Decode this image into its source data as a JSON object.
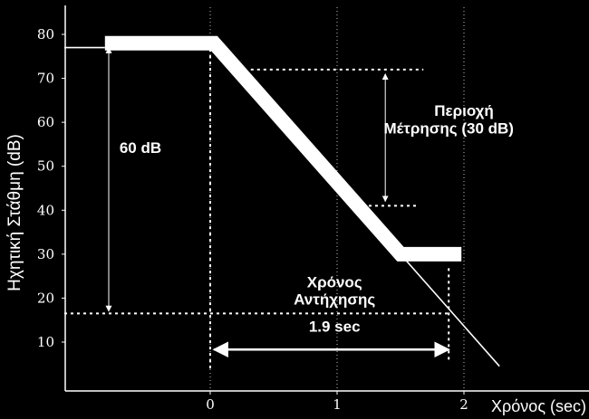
{
  "colors": {
    "background": "#000000",
    "foreground": "#ffffff"
  },
  "chart_data": {
    "type": "line",
    "title": "",
    "xlabel": "Χρόνος (sec)",
    "ylabel": "Ηχητική Στάθμη (dB)",
    "xlim": [
      -1.15,
      2.3
    ],
    "ylim": [
      4,
      84
    ],
    "grid": "vertical dotted at x ticks",
    "xticks": [
      {
        "value": 0,
        "label": "0"
      },
      {
        "value": 1,
        "label": "1"
      },
      {
        "value": 2,
        "label": "2"
      }
    ],
    "yticks": [
      {
        "value": 80,
        "label": "80"
      },
      {
        "value": 70,
        "label": "70"
      },
      {
        "value": 60,
        "label": "60"
      },
      {
        "value": 50,
        "label": "50"
      },
      {
        "value": 40,
        "label": "40"
      },
      {
        "value": 30,
        "label": "30"
      },
      {
        "value": 20,
        "label": "20"
      },
      {
        "value": 10,
        "label": "10"
      }
    ],
    "series": [
      {
        "style": "thick band",
        "x": [
          -0.83,
          0.03,
          1.5,
          1.98
        ],
        "y": [
          78,
          78,
          30,
          30
        ]
      },
      {
        "style": "thin line",
        "x": [
          -1.15,
          -0.83
        ],
        "y": [
          77,
          77
        ]
      },
      {
        "style": "thin line",
        "x": [
          1.5,
          2.28
        ],
        "y": [
          30,
          4.5
        ]
      }
    ],
    "reference_lines": [
      {
        "orientation": "horizontal",
        "y": 72,
        "x": [
          0.32,
          1.68
        ],
        "style": "dotted"
      },
      {
        "orientation": "horizontal",
        "y": 41,
        "x": [
          1.25,
          1.64
        ],
        "style": "dotted"
      },
      {
        "orientation": "horizontal",
        "y": 16.5,
        "x": [
          -1.15,
          1.88
        ],
        "style": "dotted"
      },
      {
        "orientation": "vertical",
        "x": 0,
        "y": [
          4,
          78
        ],
        "style": "dotted"
      },
      {
        "orientation": "vertical",
        "x": 1.88,
        "y": [
          6,
          27
        ],
        "style": "dotted"
      }
    ],
    "annotations": [
      {
        "text": "60 dB",
        "x": -0.55,
        "y": 53
      },
      {
        "text": "Περιοχή",
        "x": 2.0,
        "y": 61.5
      },
      {
        "text": "Μέτρησης (30 dB)",
        "x": 1.88,
        "y": 57.5
      },
      {
        "text": "Χρόνος",
        "x": 0.98,
        "y": 22.5
      },
      {
        "text": "Αντήχησης",
        "x": 0.98,
        "y": 18.5
      },
      {
        "text": "1.9 sec",
        "x": 0.98,
        "y": 12.4
      }
    ],
    "arrows": [
      {
        "name": "60 dB span",
        "x": [
          -0.8,
          -0.8
        ],
        "y": [
          77,
          17
        ]
      },
      {
        "name": "30 dB span",
        "x": [
          1.38,
          1.38
        ],
        "y": [
          71,
          42
        ]
      },
      {
        "name": "1.9 sec span",
        "x": [
          0.03,
          1.88
        ],
        "y": [
          8.3,
          8.3
        ]
      }
    ]
  }
}
